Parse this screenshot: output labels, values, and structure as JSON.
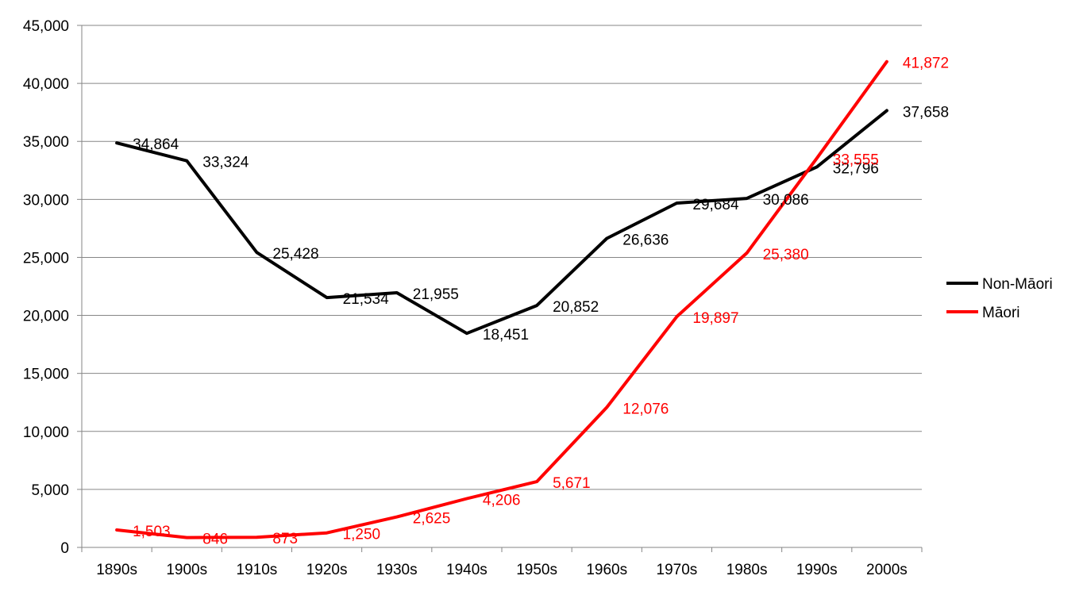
{
  "chart_data": {
    "type": "line",
    "categories": [
      "1890s",
      "1900s",
      "1910s",
      "1920s",
      "1930s",
      "1940s",
      "1950s",
      "1960s",
      "1970s",
      "1980s",
      "1990s",
      "2000s"
    ],
    "series": [
      {
        "name": "Non-Māori",
        "color": "#000000",
        "values": [
          34864,
          33324,
          25428,
          21534,
          21955,
          18451,
          20852,
          26636,
          29684,
          30086,
          32796,
          37658
        ],
        "labels": [
          "34,864",
          "33,324",
          "25,428",
          "21,534",
          "21,955",
          "18,451",
          "20,852",
          "26,636",
          "29,684",
          "30,086",
          "32,796",
          "37,658"
        ]
      },
      {
        "name": "Māori",
        "color": "#ff0000",
        "values": [
          1503,
          846,
          873,
          1250,
          2625,
          4206,
          5671,
          12076,
          19897,
          25380,
          33555,
          41872
        ],
        "labels": [
          "1,503",
          "846",
          "873",
          "1,250",
          "2,625",
          "4,206",
          "5,671",
          "12,076",
          "19,897",
          "25,380",
          "33,555",
          "41,872"
        ]
      }
    ],
    "yticks": [
      "0",
      "5,000",
      "10,000",
      "15,000",
      "20,000",
      "25,000",
      "30,000",
      "35,000",
      "40,000",
      "45,000"
    ],
    "ylim": [
      0,
      45000
    ],
    "ystep": 5000,
    "grid": true,
    "legend_position": "right",
    "title": "",
    "xlabel": "",
    "ylabel": ""
  }
}
